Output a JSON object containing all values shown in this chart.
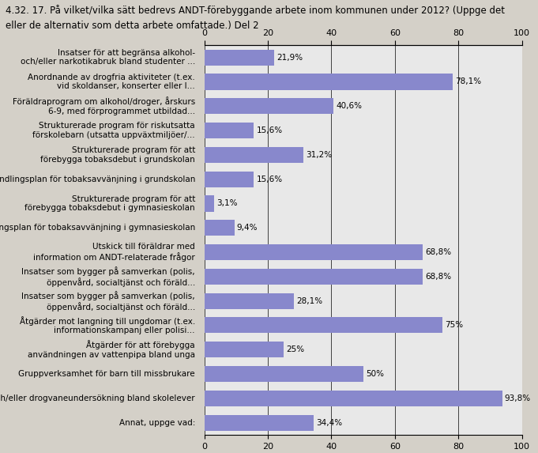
{
  "title_line1": "4.32. 17. På vilket/vilka sätt bedrevs ANDT-förebyggande arbete inom kommunen under 2012? (Uppge det",
  "title_line2": "eller de alternativ som detta arbete omfattade.) Del 2",
  "categories": [
    "Insatser för att begränsa alkohol-\noch/eller narkotikabruk bland studenter ...",
    "Anordnande av drogfria aktiviteter (t.ex.\nvid skoldanser, konserter eller l...",
    "Föräldraprogram om alkohol/droger, årskurs\n6-9, med förprogrammet utbildad...",
    "Strukturerade program för riskutsatta\nförskolebarn (utsatta uppväxtmiljöer/...",
    "Strukturerade program för att\nförebygga tobaksdebut i grundskolan",
    "Handlingsplan för tobaksavvänjning i grundskolan",
    "Strukturerade program för att\nförebygga tobaksdebut i gymnasieskolan",
    "Handlingsplan för tobaksavvänjning i gymnasieskolan",
    "Utskick till föräldrar med\ninformation om ANDT-relaterade frågor",
    "Insatser som bygger på samverkan (polis,\nöppenvård, socialtjänst och föräld...",
    "Insatser som bygger på samverkan (polis,\nöppenvård, socialtjänst och föräld...",
    "Åtgärder mot langning till ungdomar (t.ex.\ninformationskampanj eller polisi...",
    "Åtgärder för att förebygga\nanvändningen av vattenpipa bland unga",
    "Gruppverksamhet för barn till missbrukare",
    "Alkohol- och/eller drogvaneundersökning bland skolelever",
    "Annat, uppge vad:"
  ],
  "values": [
    21.9,
    78.1,
    40.6,
    15.6,
    31.2,
    15.6,
    3.1,
    9.4,
    68.8,
    68.8,
    28.1,
    75.0,
    25.0,
    50.0,
    93.8,
    34.4
  ],
  "labels": [
    "21,9%",
    "78,1%",
    "40,6%",
    "15,6%",
    "31,2%",
    "15,6%",
    "3,1%",
    "9,4%",
    "68,8%",
    "68,8%",
    "28,1%",
    "75%",
    "25%",
    "50%",
    "93,8%",
    "34,4%"
  ],
  "bar_color": "#8888cc",
  "bg_color": "#d4d0c8",
  "plot_bg_color": "#e8e8e8",
  "title_fontsize": 8.5,
  "label_fontsize": 7.5,
  "tick_fontsize": 8,
  "bar_label_fontsize": 7.5,
  "xlim": [
    0,
    100
  ],
  "xticks": [
    0,
    20,
    40,
    60,
    80,
    100
  ]
}
